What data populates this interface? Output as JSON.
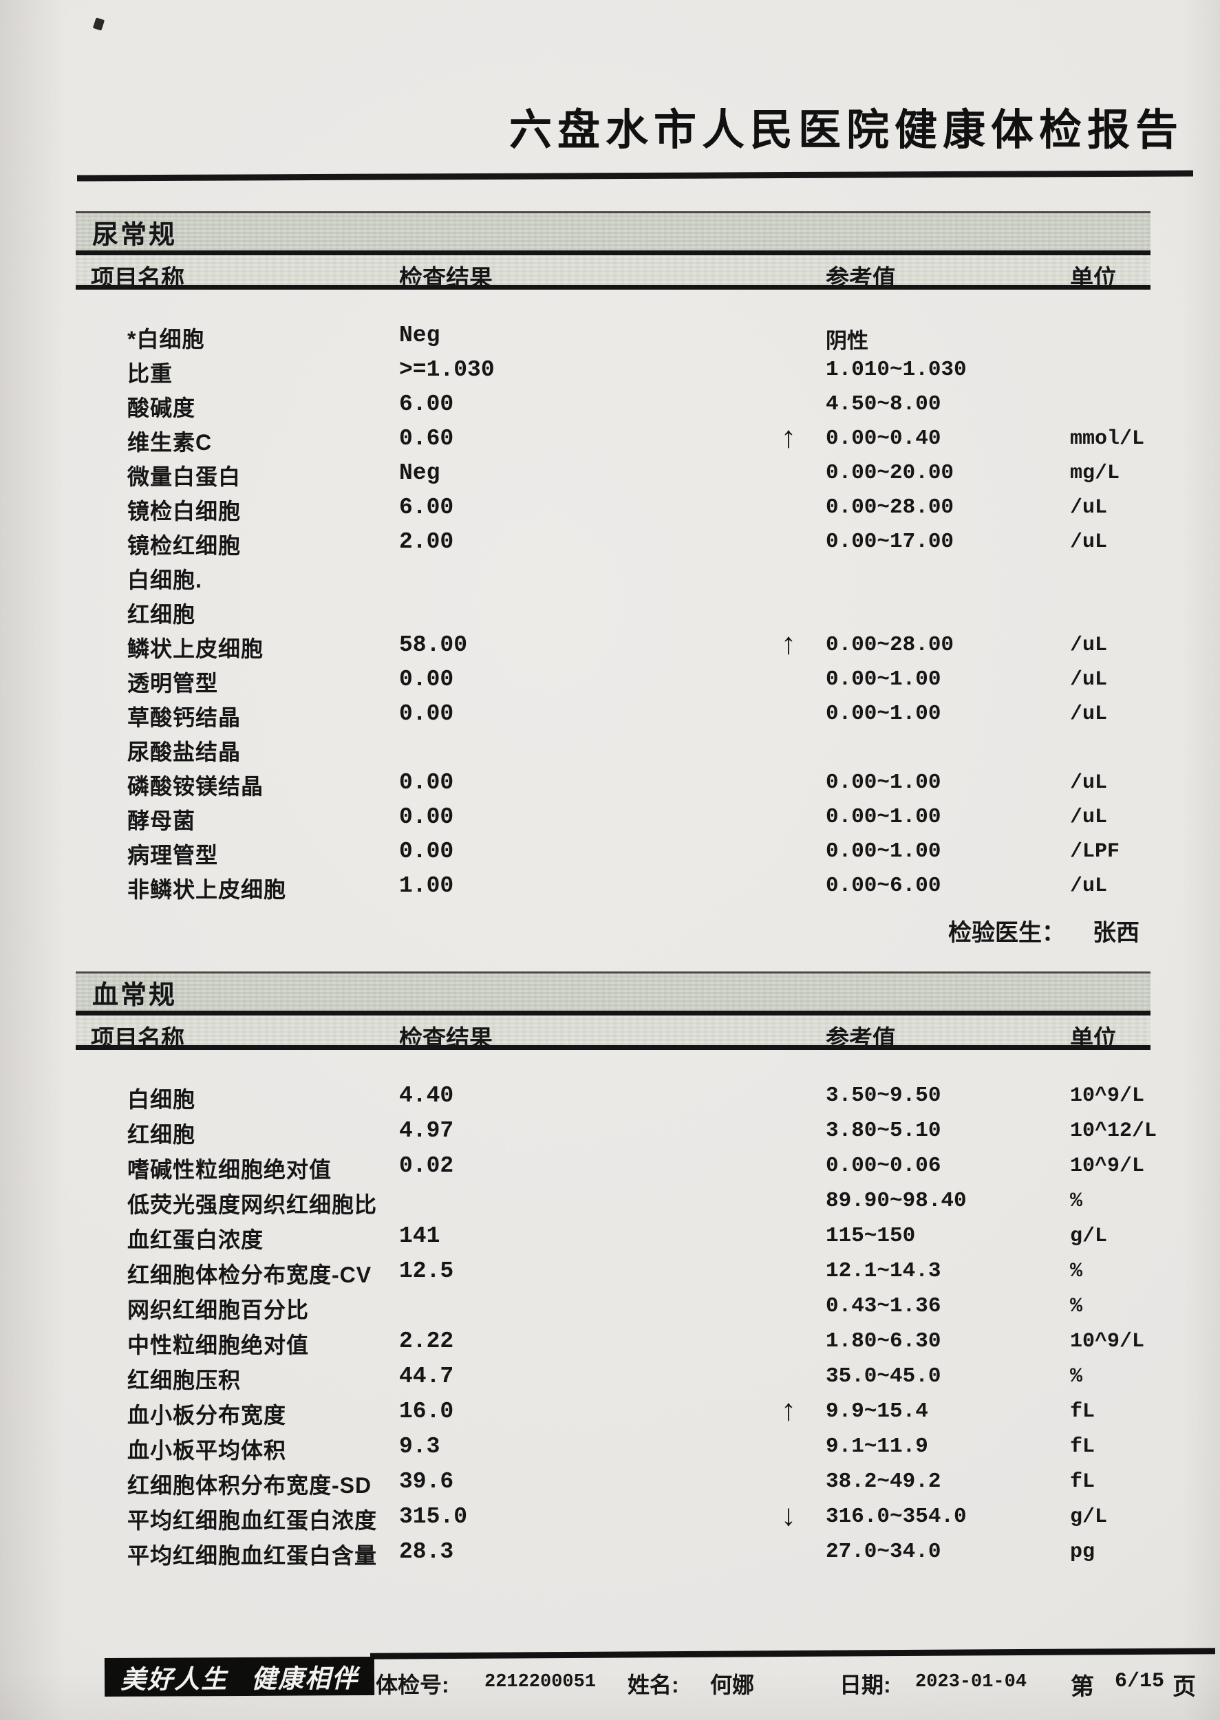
{
  "page": {
    "title": "六盘水市人民医院健康体检报告",
    "footer": {
      "slogan_left": "美好人生",
      "slogan_right": "健康相伴",
      "exam_no_label": "体检号:",
      "exam_no": "2212200051",
      "name_label": "姓名:",
      "name_value": "何娜",
      "date_label": "日期:",
      "date_value": "2023-01-04",
      "page_prefix": "第",
      "page_number": "6/15",
      "page_suffix": "页"
    }
  },
  "columns": {
    "item": "项目名称",
    "result": "检查结果",
    "reference": "参考值",
    "unit": "单位"
  },
  "sections": [
    {
      "name": "尿常规",
      "doctor_label": "检验医生：",
      "doctor_name": "张西",
      "rows": [
        {
          "item": "*白细胞",
          "result": "Neg",
          "flag": "",
          "reference": "阴性",
          "unit": ""
        },
        {
          "item": "比重",
          "result": ">=1.030",
          "flag": "",
          "reference": "1.010~1.030",
          "unit": ""
        },
        {
          "item": "酸碱度",
          "result": "6.00",
          "flag": "",
          "reference": "4.50~8.00",
          "unit": ""
        },
        {
          "item": "维生素C",
          "result": "0.60",
          "flag": "↑",
          "reference": "0.00~0.40",
          "unit": "mmol/L"
        },
        {
          "item": "微量白蛋白",
          "result": "Neg",
          "flag": "",
          "reference": "0.00~20.00",
          "unit": "mg/L"
        },
        {
          "item": "镜检白细胞",
          "result": "6.00",
          "flag": "",
          "reference": "0.00~28.00",
          "unit": "/uL"
        },
        {
          "item": "镜检红细胞",
          "result": "2.00",
          "flag": "",
          "reference": "0.00~17.00",
          "unit": "/uL"
        },
        {
          "item": "白细胞.",
          "result": "",
          "flag": "",
          "reference": "",
          "unit": ""
        },
        {
          "item": "红细胞",
          "result": "",
          "flag": "",
          "reference": "",
          "unit": ""
        },
        {
          "item": "鳞状上皮细胞",
          "result": "58.00",
          "flag": "↑",
          "reference": "0.00~28.00",
          "unit": "/uL"
        },
        {
          "item": "透明管型",
          "result": "0.00",
          "flag": "",
          "reference": "0.00~1.00",
          "unit": "/uL"
        },
        {
          "item": "草酸钙结晶",
          "result": "0.00",
          "flag": "",
          "reference": "0.00~1.00",
          "unit": "/uL"
        },
        {
          "item": "尿酸盐结晶",
          "result": "",
          "flag": "",
          "reference": "",
          "unit": ""
        },
        {
          "item": "磷酸铵镁结晶",
          "result": "0.00",
          "flag": "",
          "reference": "0.00~1.00",
          "unit": "/uL"
        },
        {
          "item": "酵母菌",
          "result": "0.00",
          "flag": "",
          "reference": "0.00~1.00",
          "unit": "/uL"
        },
        {
          "item": "病理管型",
          "result": "0.00",
          "flag": "",
          "reference": "0.00~1.00",
          "unit": "/LPF"
        },
        {
          "item": "非鳞状上皮细胞",
          "result": "1.00",
          "flag": "",
          "reference": "0.00~6.00",
          "unit": "/uL"
        }
      ]
    },
    {
      "name": "血常规",
      "rows": [
        {
          "item": "白细胞",
          "result": "4.40",
          "flag": "",
          "reference": "3.50~9.50",
          "unit": "10^9/L"
        },
        {
          "item": "红细胞",
          "result": "4.97",
          "flag": "",
          "reference": "3.80~5.10",
          "unit": "10^12/L"
        },
        {
          "item": "嗜碱性粒细胞绝对值",
          "result": "0.02",
          "flag": "",
          "reference": "0.00~0.06",
          "unit": "10^9/L"
        },
        {
          "item": "低荧光强度网织红细胞比",
          "result": "",
          "flag": "",
          "reference": "89.90~98.40",
          "unit": "%"
        },
        {
          "item": "血红蛋白浓度",
          "result": "141",
          "flag": "",
          "reference": "115~150",
          "unit": "g/L"
        },
        {
          "item": "红细胞体检分布宽度-CV",
          "result": "12.5",
          "flag": "",
          "reference": "12.1~14.3",
          "unit": "%"
        },
        {
          "item": "网织红细胞百分比",
          "result": "",
          "flag": "",
          "reference": "0.43~1.36",
          "unit": "%"
        },
        {
          "item": "中性粒细胞绝对值",
          "result": "2.22",
          "flag": "",
          "reference": "1.80~6.30",
          "unit": "10^9/L"
        },
        {
          "item": "红细胞压积",
          "result": "44.7",
          "flag": "",
          "reference": "35.0~45.0",
          "unit": "%"
        },
        {
          "item": "血小板分布宽度",
          "result": "16.0",
          "flag": "↑",
          "reference": "9.9~15.4",
          "unit": "fL"
        },
        {
          "item": "血小板平均体积",
          "result": "9.3",
          "flag": "",
          "reference": "9.1~11.9",
          "unit": "fL"
        },
        {
          "item": "红细胞体积分布宽度-SD",
          "result": "39.6",
          "flag": "",
          "reference": "38.2~49.2",
          "unit": "fL"
        },
        {
          "item": "平均红细胞血红蛋白浓度",
          "result": "315.0",
          "flag": "↓",
          "reference": "316.0~354.0",
          "unit": "g/L"
        },
        {
          "item": "平均红细胞血红蛋白含量",
          "result": "28.3",
          "flag": "",
          "reference": "27.0~34.0",
          "unit": "pg"
        }
      ]
    }
  ]
}
